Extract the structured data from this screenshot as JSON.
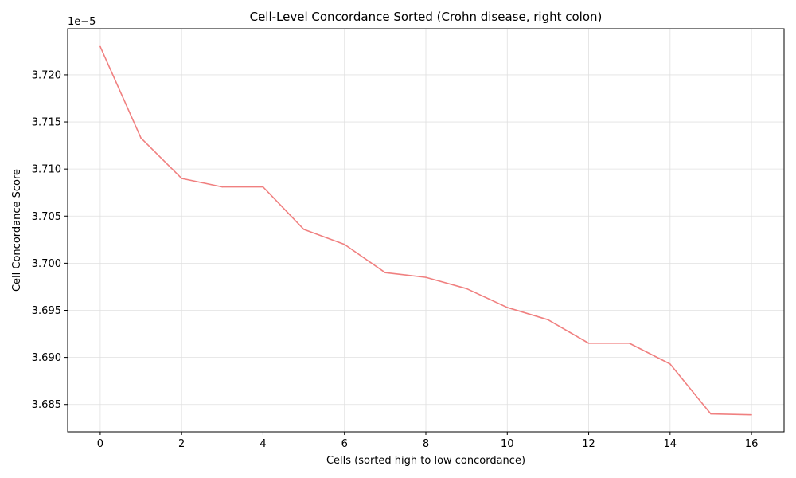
{
  "chart_data": {
    "type": "line",
    "title": "Cell-Level Concordance Sorted (Crohn disease, right colon)",
    "xlabel": "Cells (sorted high to low concordance)",
    "ylabel": "Cell Concordance Score",
    "y_offset_label": "1e−5",
    "x": [
      0,
      1,
      2,
      3,
      4,
      5,
      6,
      7,
      8,
      9,
      10,
      11,
      12,
      13,
      14,
      15,
      16
    ],
    "series": [
      {
        "values": [
          3.723,
          3.7133,
          3.709,
          3.7081,
          3.7081,
          3.7036,
          3.702,
          3.699,
          3.6985,
          3.6973,
          3.6953,
          3.694,
          3.6915,
          3.6915,
          3.6893,
          3.684,
          3.6839
        ],
        "color": "#f08080"
      }
    ],
    "xlim": [
      -0.8,
      16.8
    ],
    "ylim": [
      3.6821,
      3.7249
    ],
    "x_ticks": [
      "0",
      "2",
      "4",
      "6",
      "8",
      "10",
      "12",
      "14",
      "16"
    ],
    "y_ticks": [
      "3.685",
      "3.690",
      "3.695",
      "3.700",
      "3.705",
      "3.710",
      "3.715",
      "3.720"
    ],
    "grid": true,
    "legend": "none"
  }
}
